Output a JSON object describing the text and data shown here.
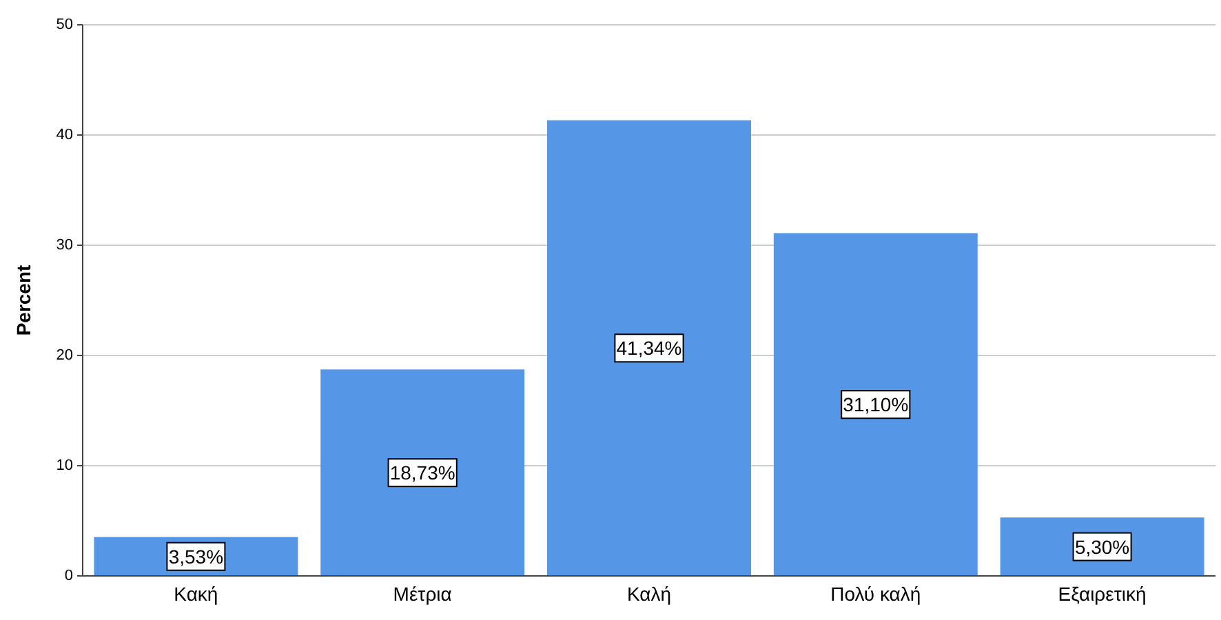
{
  "chart_data": {
    "type": "bar",
    "ylabel": "Percent",
    "categories": [
      "Κακή",
      "Μέτρια",
      "Καλή",
      "Πολύ καλή",
      "Εξαιρετική"
    ],
    "values": [
      3.53,
      18.73,
      41.34,
      31.1,
      5.3
    ],
    "value_labels": [
      "3,53%",
      "18,73%",
      "41,34%",
      "31,10%",
      "5,30%"
    ],
    "color": "#5596e6",
    "ylim": [
      0,
      50
    ],
    "yticks": [
      0,
      10,
      20,
      30,
      40,
      50
    ],
    "grid": "y"
  }
}
